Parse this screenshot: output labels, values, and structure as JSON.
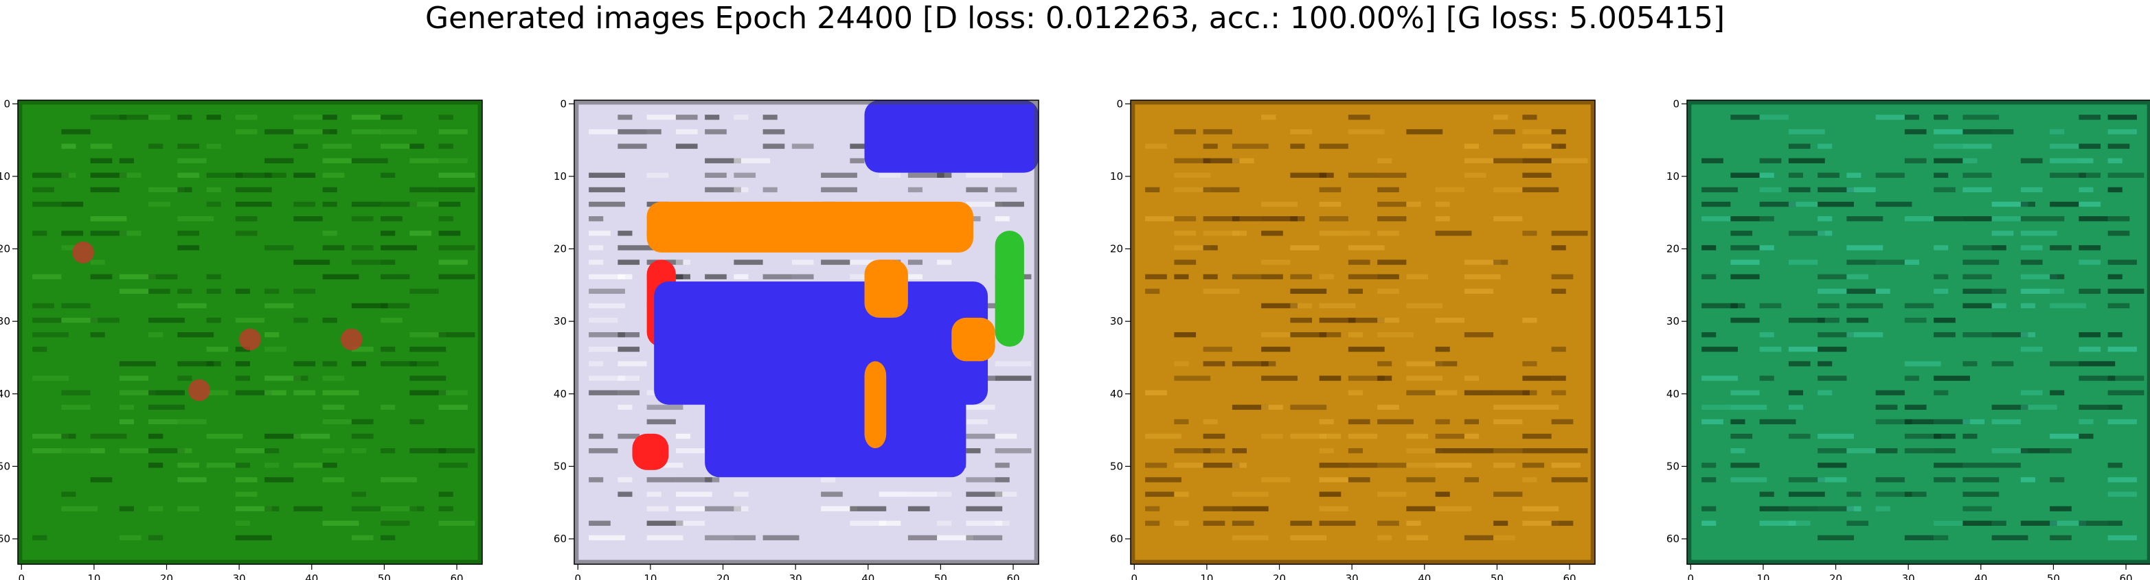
{
  "figure": {
    "title": "Generated images Epoch 24400 [D loss: 0.012263, acc.: 100.00%] [G loss: 5.005415]"
  },
  "chart_data": [
    {
      "type": "heatmap",
      "panel": 1,
      "xlim": [
        0,
        63
      ],
      "ylim": [
        63,
        0
      ],
      "xticks": [
        0,
        10,
        20,
        30,
        40,
        50,
        60
      ],
      "yticks": [
        0,
        10,
        20,
        30,
        40,
        50,
        60
      ],
      "palette": {
        "base": "#1f8a14",
        "light": "#3fae2c",
        "dark": "#0b4a08",
        "accent": "#c0392b"
      }
    },
    {
      "type": "heatmap",
      "panel": 2,
      "xlim": [
        0,
        63
      ],
      "ylim": [
        63,
        0
      ],
      "xticks": [
        0,
        10,
        20,
        30,
        40,
        50,
        60
      ],
      "yticks": [
        0,
        10,
        20,
        30,
        40,
        50,
        60
      ],
      "palette": {
        "base": "#dcd8ee",
        "blue": "#3a2ff0",
        "orange": "#ff8a00",
        "red": "#ff2020",
        "accent": "#2ec22e"
      }
    },
    {
      "type": "heatmap",
      "panel": 3,
      "xlim": [
        0,
        63
      ],
      "ylim": [
        63,
        0
      ],
      "xticks": [
        0,
        10,
        20,
        30,
        40,
        50,
        60
      ],
      "yticks": [
        0,
        10,
        20,
        30,
        40,
        50,
        60
      ],
      "palette": {
        "base": "#c68a12",
        "light": "#e0a52a",
        "dark": "#4a2a04"
      }
    },
    {
      "type": "heatmap",
      "panel": 4,
      "xlim": [
        0,
        63
      ],
      "ylim": [
        63,
        0
      ],
      "xticks": [
        0,
        10,
        20,
        30,
        40,
        50,
        60
      ],
      "yticks": [
        0,
        10,
        20,
        30,
        40,
        50,
        60
      ],
      "palette": {
        "base": "#1f9a5a",
        "light": "#3cc8a0",
        "dark": "#062a18"
      }
    }
  ]
}
